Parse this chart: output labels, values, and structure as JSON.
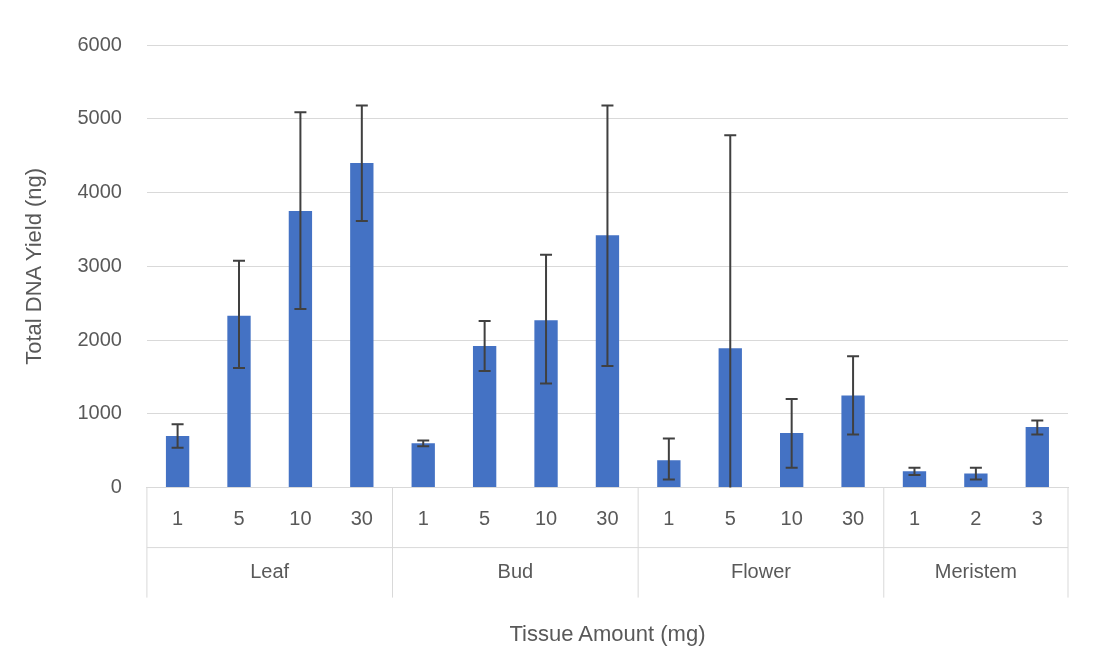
{
  "chart_data": {
    "type": "bar",
    "xlabel": "Tissue Amount (mg)",
    "ylabel": "Total DNA Yield (ng)",
    "categories": [
      "1",
      "5",
      "10",
      "30",
      "1",
      "5",
      "10",
      "30",
      "1",
      "5",
      "10",
      "30",
      "1",
      "2",
      "3"
    ],
    "annotations": [
      "Leaf",
      "Bud",
      "Flower",
      "Meristem"
    ],
    "values": [
      700,
      2330,
      3750,
      4400,
      600,
      1920,
      2270,
      3420,
      370,
      1890,
      740,
      1250,
      220,
      190,
      820
    ],
    "errors": [
      [
        540,
        860
      ],
      [
        1620,
        3075
      ],
      [
        2420,
        5090
      ],
      [
        3615,
        5180
      ],
      [
        560,
        640
      ],
      [
        1580,
        2260
      ],
      [
        1410,
        3155
      ],
      [
        1650,
        5180
      ],
      [
        110,
        665
      ],
      [
        0,
        4775
      ],
      [
        270,
        1200
      ],
      [
        720,
        1780
      ],
      [
        170,
        270
      ],
      [
        110,
        270
      ],
      [
        720,
        910
      ]
    ],
    "color": "#4472c4",
    "ylim": [
      0,
      6000
    ],
    "yticks": [
      0,
      1000,
      2000,
      3000,
      4000,
      5000,
      6000
    ],
    "grid": "y",
    "legend": false
  }
}
